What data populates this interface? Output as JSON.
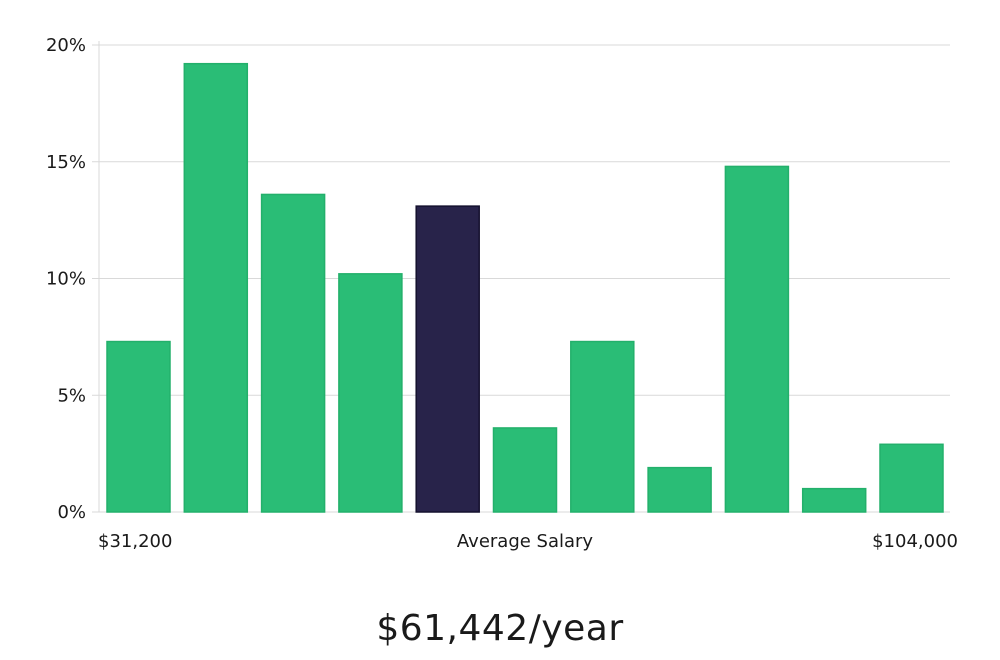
{
  "chart_data": {
    "type": "bar",
    "values": [
      7.3,
      19.2,
      13.6,
      10.2,
      13.1,
      3.6,
      7.3,
      1.9,
      14.8,
      1.0,
      2.9
    ],
    "highlight_index": 4,
    "ylim": [
      0,
      20
    ],
    "y_ticks": [
      0,
      5,
      10,
      15,
      20
    ],
    "y_tick_labels": [
      "0%",
      "5%",
      "10%",
      "15%",
      "20%"
    ],
    "x_min_label": "$31,200",
    "x_center_label": "Average Salary",
    "x_max_label": "$104,000",
    "grid": true,
    "colors": {
      "bar": "#2abd76",
      "highlight": "#28234a",
      "grid": "#d9d9d9",
      "axis": "#d9d9d9"
    }
  },
  "summary": {
    "salary": "$61,442/year"
  }
}
